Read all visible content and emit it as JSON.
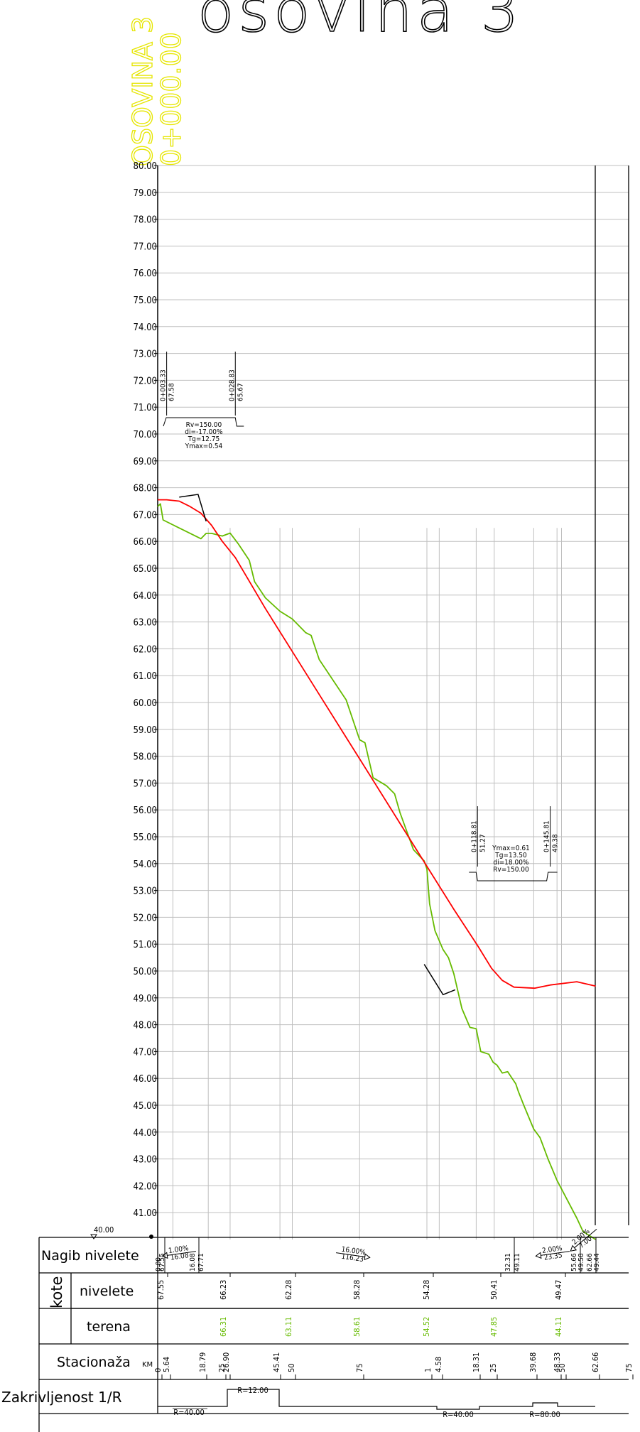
{
  "title": "osovina 3",
  "axis_label": {
    "name": "OSOVINA 3",
    "station": "0+000.00",
    "color": "#e6e600"
  },
  "colors": {
    "grade_line": "#ff0000",
    "terrain_line": "#66bb00",
    "grid": "#bfbfbf",
    "ink": "#000000",
    "terrain_text": "#66bb00"
  },
  "elev_labels": [
    "80.00",
    "79.00",
    "78.00",
    "77.00",
    "76.00",
    "75.00",
    "74.00",
    "73.00",
    "72.00",
    "71.00",
    "70.00",
    "69.00",
    "68.00",
    "67.00",
    "66.00",
    "65.00",
    "64.00",
    "63.00",
    "62.00",
    "61.00",
    "60.00",
    "59.00",
    "58.00",
    "57.00",
    "56.00",
    "55.00",
    "54.00",
    "53.00",
    "52.00",
    "51.00",
    "50.00",
    "49.00",
    "48.00",
    "47.00",
    "46.00",
    "45.00",
    "44.00",
    "43.00",
    "42.00",
    "41.00"
  ],
  "datum": "40.00",
  "vcurve1": {
    "start_st": "0+003.33",
    "start_el": "67.58",
    "end_st": "0+028.83",
    "end_el": "65.67",
    "rv": "Rv=150.00",
    "di": "di=-17.00%",
    "tg": "Tg=12.75",
    "ymax": "Ymax=0.54"
  },
  "vcurve2": {
    "start_st": "0+118.81",
    "start_el": "51.27",
    "end_st": "0+145.81",
    "end_el": "49.38",
    "ymax": "Ymax=0.61",
    "tg": "Tg=13.50",
    "di": "di=18.00%",
    "rv": "Rv=150.00"
  },
  "band": {
    "row_nagib": "Nagib nivelete",
    "row_kote": "kote",
    "row_nivelete": "nivelete",
    "row_terena": "terena",
    "row_stacionaza": "Stacionaža",
    "row_stacionaza_unit": "KM",
    "row_zakrivljenost": "Zakrivljenost 1/R"
  },
  "grades": [
    {
      "slope": "1.00%",
      "len": "16.08"
    },
    {
      "slope": "16.00%",
      "len": "116.23"
    },
    {
      "slope": "2.00%",
      "len": "23.35"
    },
    {
      "slope": "2.00%",
      "len": "7.00"
    }
  ],
  "nagib_stations": [
    "0.00",
    "67.55",
    "16.08",
    "67.71",
    "32.31",
    "49.11",
    "55.66",
    "49.58",
    "62.66",
    "49.44"
  ],
  "kote_nivelete": [
    "67.55",
    "66.23",
    "62.28",
    "58.28",
    "54.28",
    "50.41",
    "49.47"
  ],
  "kote_terena": [
    "66.31",
    "63.11",
    "58.61",
    "54.52",
    "47.85",
    "44.11"
  ],
  "stations": [
    "0",
    "5.64",
    "18.79",
    "25",
    "26.90",
    "45.41",
    "50",
    "75",
    "1",
    "4.58",
    "18.31",
    "25",
    "39.68",
    "48.33",
    "50",
    "62.66",
    "75"
  ],
  "curves": [
    "R=40.00",
    "R=12.00",
    "R=40.00",
    "R=80.00"
  ],
  "chart_data": {
    "type": "line",
    "title": "osovina 3",
    "xlabel": "",
    "ylabel": "",
    "xlim": [
      0,
      175
    ],
    "ylim": [
      40,
      80
    ],
    "grid": true,
    "series": [
      {
        "x": [
          0,
          3.33,
          8,
          12,
          16.08,
          20,
          24,
          28.83,
          40,
          50,
          60,
          75,
          90,
          100,
          110,
          118.81,
          124,
          128,
          132.31,
          140,
          145.81,
          155.66,
          162.66
        ],
        "y": [
          67.55,
          67.55,
          67.5,
          67.3,
          67.05,
          66.6,
          66.0,
          65.4,
          63.5,
          61.9,
          60.3,
          57.9,
          55.5,
          53.9,
          52.3,
          50.95,
          50.1,
          49.65,
          49.4,
          49.36,
          49.48,
          49.6,
          49.44
        ]
      },
      {
        "x": [
          0,
          1,
          2,
          8,
          14,
          16.08,
          18,
          20,
          24,
          26.9,
          30,
          34,
          36,
          40,
          45.41,
          50,
          55,
          57,
          60,
          62,
          64,
          70,
          75,
          77,
          80,
          85,
          88,
          90,
          95,
          99,
          100,
          101,
          103,
          106,
          108,
          110,
          113,
          116,
          118.31,
          120,
          123,
          124.58,
          126,
          128,
          130,
          133,
          134,
          136,
          139.68,
          142,
          145,
          148.33,
          152,
          155.66,
          158,
          162.66
        ],
        "y": [
          67.3,
          67.4,
          66.8,
          66.5,
          66.2,
          66.1,
          66.3,
          66.3,
          66.2,
          66.31,
          65.9,
          65.3,
          64.5,
          63.9,
          63.4,
          63.11,
          62.6,
          62.5,
          61.6,
          61.3,
          61.0,
          60.1,
          58.61,
          58.5,
          57.2,
          56.9,
          56.6,
          55.9,
          54.52,
          54.1,
          53.8,
          52.5,
          51.5,
          50.8,
          50.5,
          49.9,
          48.6,
          47.9,
          47.85,
          47.0,
          46.9,
          46.6,
          46.5,
          46.2,
          46.25,
          45.8,
          45.5,
          45.0,
          44.11,
          43.8,
          43.0,
          42.2,
          41.5,
          40.8,
          40.3,
          40.0
        ]
      }
    ]
  }
}
